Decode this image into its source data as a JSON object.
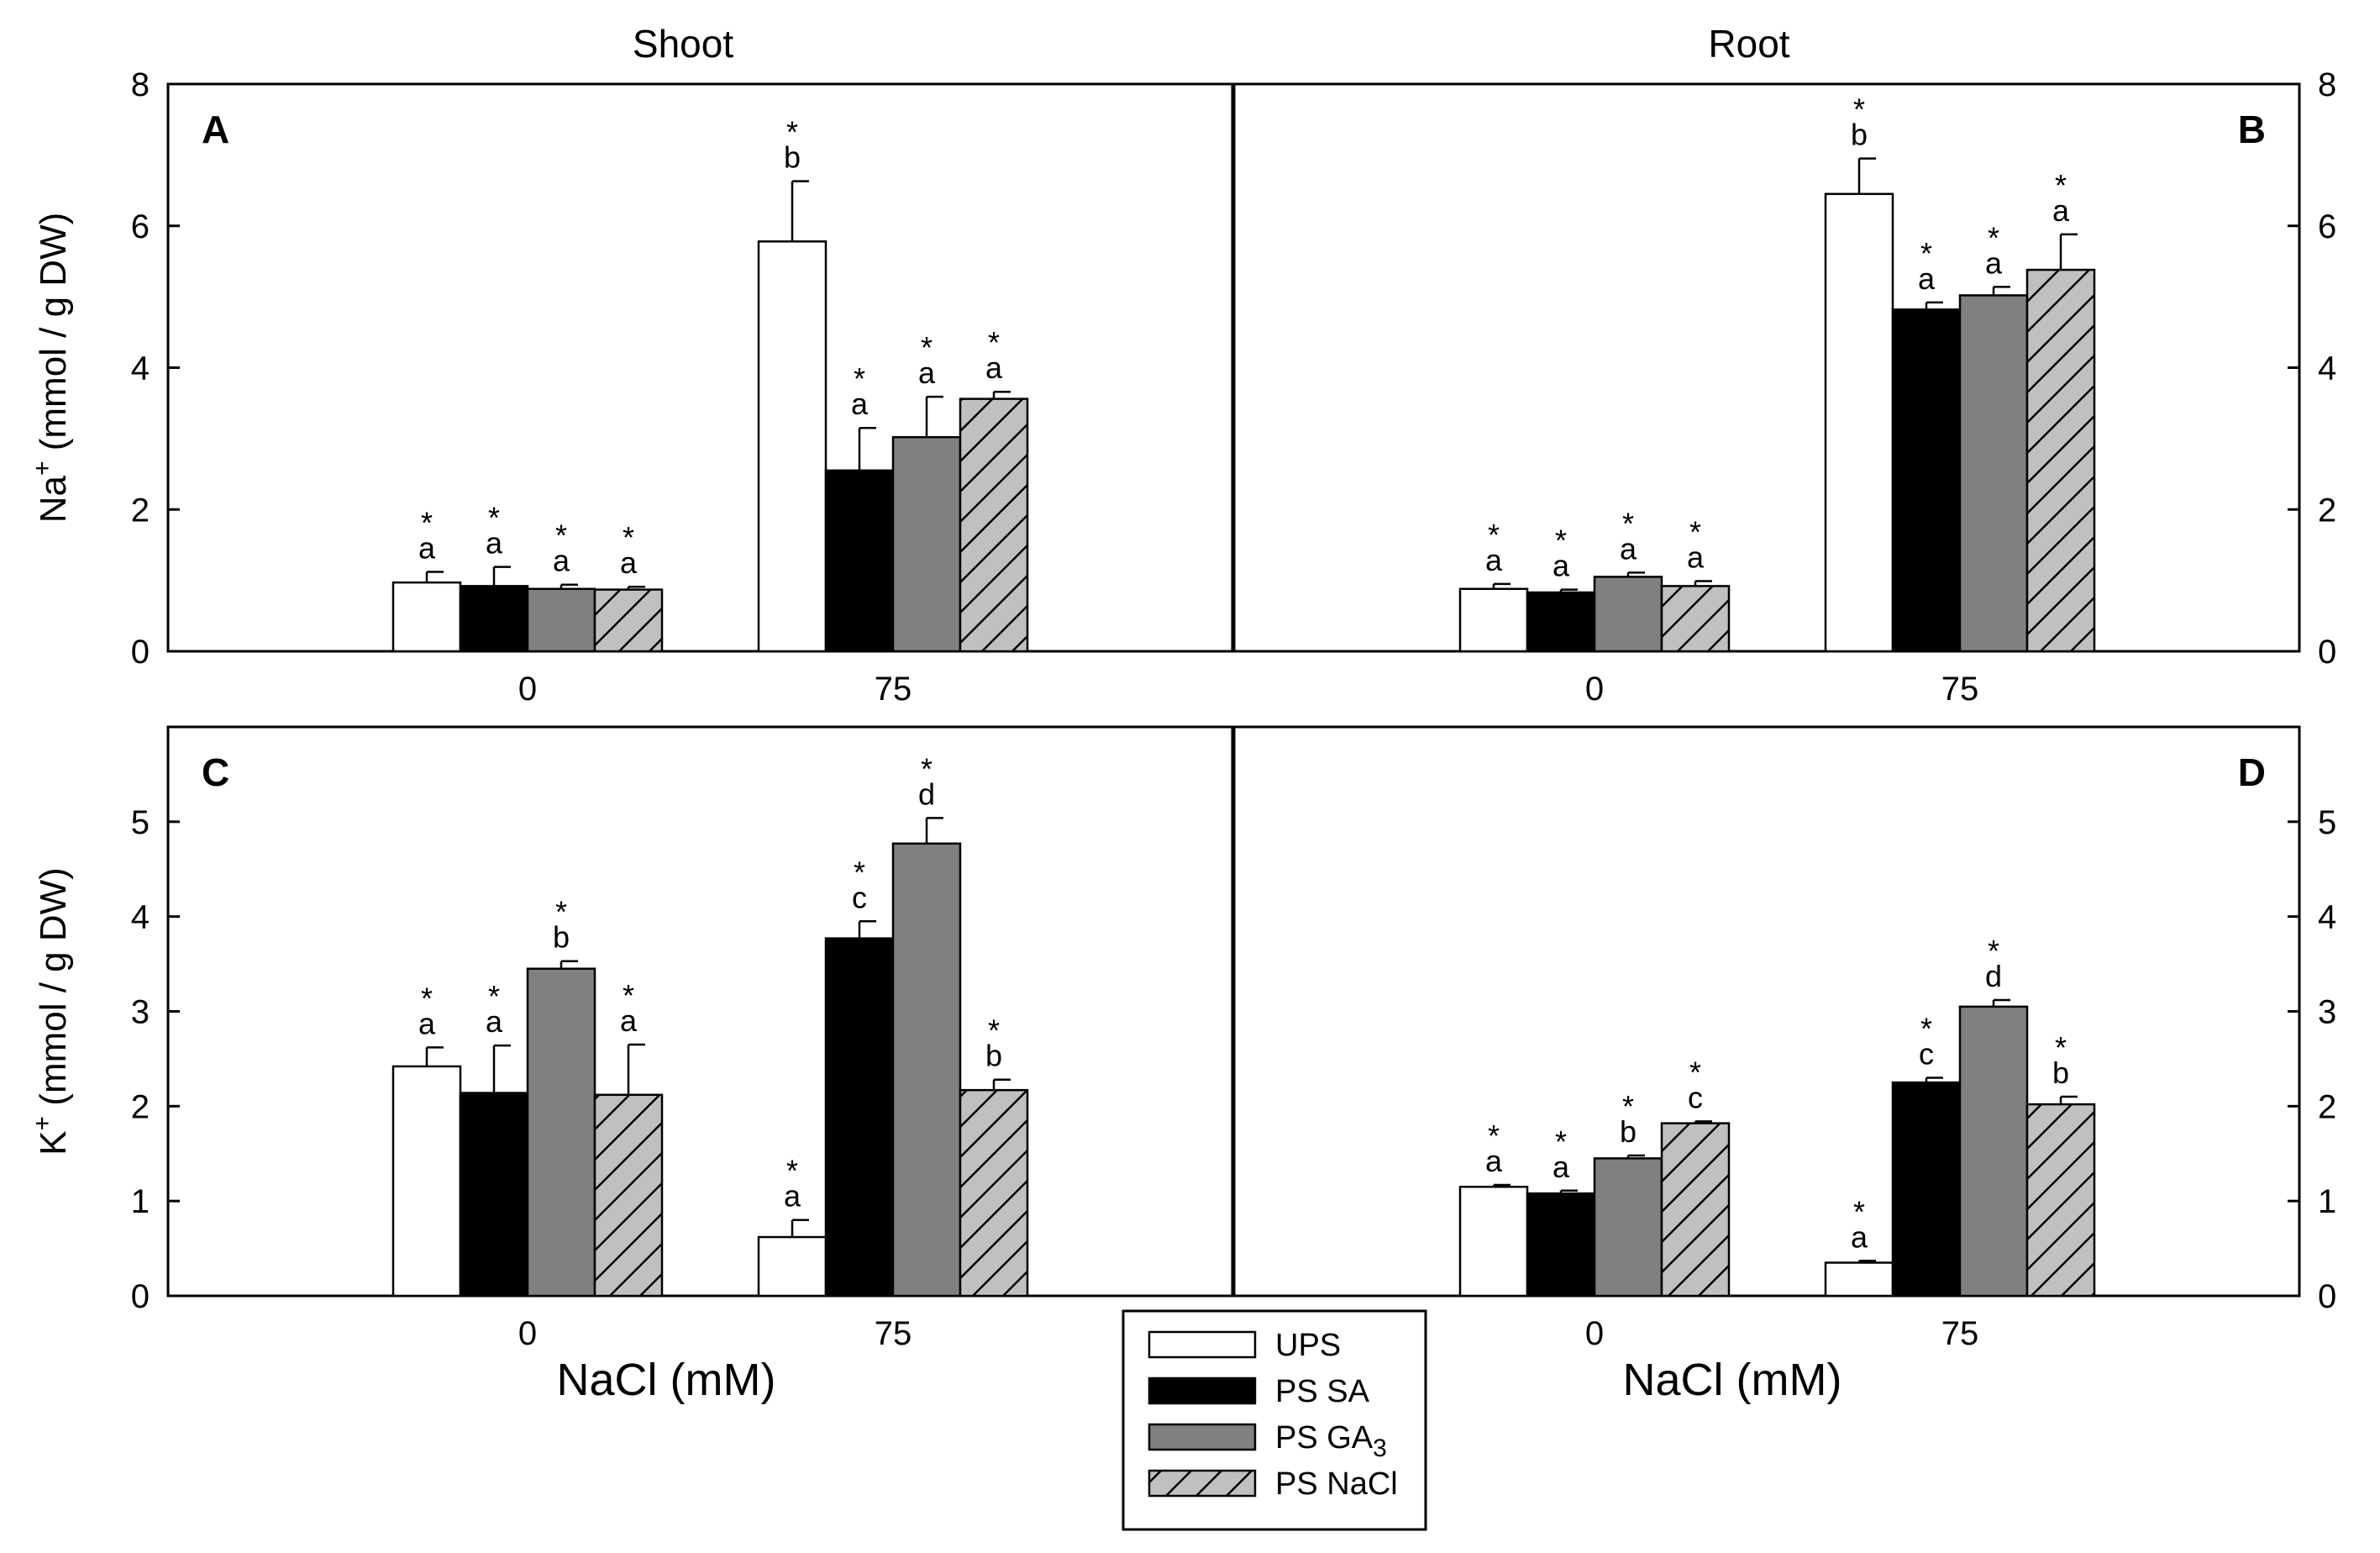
{
  "chart_data": {
    "type": "bar",
    "title": "",
    "columns": [
      "Shoot",
      "Root"
    ],
    "xlabel": "NaCl (mM)",
    "categories": [
      "0",
      "75"
    ],
    "series_names": [
      "UPS",
      "PS SA",
      "PS GA3",
      "PS NaCl"
    ],
    "series_colors": [
      "#ffffff",
      "#000000",
      "#808080",
      "#c0c0c0"
    ],
    "series_hatch": [
      false,
      false,
      false,
      true
    ],
    "legend": {
      "position": "bottom-center",
      "items": [
        {
          "label": "UPS",
          "sub": ""
        },
        {
          "label": "PS SA",
          "sub": ""
        },
        {
          "label": "PS GA",
          "sub": "3"
        },
        {
          "label": "PS NaCl",
          "sub": ""
        }
      ]
    },
    "panels": [
      {
        "id": "A",
        "letter": "A",
        "column_title": "Shoot",
        "row": 0,
        "col": 0,
        "ylabel": "Na",
        "ylabel_sup": "+",
        "ylabel_rest": " (mmol / g DW)",
        "ylim": [
          0,
          8
        ],
        "yticks": [
          0,
          2,
          4,
          6,
          8
        ],
        "series": [
          {
            "name": "UPS",
            "values": [
              0.97,
              5.78
            ],
            "errors": [
              0.15,
              0.85
            ],
            "letters": [
              "a",
              "b"
            ],
            "star": [
              true,
              true
            ]
          },
          {
            "name": "PS SA",
            "values": [
              0.92,
              2.55
            ],
            "errors": [
              0.27,
              0.6
            ],
            "letters": [
              "a",
              "a"
            ],
            "star": [
              true,
              true
            ]
          },
          {
            "name": "PS GA3",
            "values": [
              0.88,
              3.02
            ],
            "errors": [
              0.06,
              0.57
            ],
            "letters": [
              "a",
              "a"
            ],
            "star": [
              true,
              true
            ]
          },
          {
            "name": "PS NaCl",
            "values": [
              0.87,
              3.56
            ],
            "errors": [
              0.04,
              0.1
            ],
            "letters": [
              "a",
              "a"
            ],
            "star": [
              true,
              true
            ]
          }
        ]
      },
      {
        "id": "B",
        "letter": "B",
        "column_title": "Root",
        "row": 0,
        "col": 1,
        "ylabel": "",
        "ylabel_sup": "",
        "ylabel_rest": "",
        "ylim": [
          0,
          8
        ],
        "yticks": [
          0,
          2,
          4,
          6,
          8
        ],
        "series": [
          {
            "name": "UPS",
            "values": [
              0.88,
              6.45
            ],
            "errors": [
              0.07,
              0.5
            ],
            "letters": [
              "a",
              "b"
            ],
            "star": [
              true,
              true
            ]
          },
          {
            "name": "PS SA",
            "values": [
              0.83,
              4.82
            ],
            "errors": [
              0.04,
              0.1
            ],
            "letters": [
              "a",
              "a"
            ],
            "star": [
              true,
              true
            ]
          },
          {
            "name": "PS GA3",
            "values": [
              1.05,
              5.02
            ],
            "errors": [
              0.06,
              0.12
            ],
            "letters": [
              "a",
              "a"
            ],
            "star": [
              true,
              true
            ]
          },
          {
            "name": "PS NaCl",
            "values": [
              0.92,
              5.38
            ],
            "errors": [
              0.07,
              0.5
            ],
            "letters": [
              "a",
              "a"
            ],
            "star": [
              true,
              true
            ]
          }
        ]
      },
      {
        "id": "C",
        "letter": "C",
        "column_title": "",
        "row": 1,
        "col": 0,
        "ylabel": "K",
        "ylabel_sup": "+",
        "ylabel_rest": " (mmol / g DW)",
        "ylim": [
          0,
          6
        ],
        "yticks": [
          0,
          1,
          2,
          3,
          4,
          5
        ],
        "series": [
          {
            "name": "UPS",
            "values": [
              2.42,
              0.62
            ],
            "errors": [
              0.2,
              0.18
            ],
            "letters": [
              "a",
              "a"
            ],
            "star": [
              true,
              true
            ]
          },
          {
            "name": "PS SA",
            "values": [
              2.14,
              3.77
            ],
            "errors": [
              0.5,
              0.18
            ],
            "letters": [
              "a",
              "c"
            ],
            "star": [
              true,
              true
            ]
          },
          {
            "name": "PS GA3",
            "values": [
              3.45,
              4.77
            ],
            "errors": [
              0.08,
              0.27
            ],
            "letters": [
              "b",
              "d"
            ],
            "star": [
              true,
              true
            ]
          },
          {
            "name": "PS NaCl",
            "values": [
              2.12,
              2.17
            ],
            "errors": [
              0.53,
              0.11
            ],
            "letters": [
              "a",
              "b"
            ],
            "star": [
              true,
              true
            ]
          }
        ]
      },
      {
        "id": "D",
        "letter": "D",
        "column_title": "",
        "row": 1,
        "col": 1,
        "ylabel": "",
        "ylabel_sup": "",
        "ylabel_rest": "",
        "ylim": [
          0,
          6
        ],
        "yticks": [
          0,
          1,
          2,
          3,
          4,
          5
        ],
        "series": [
          {
            "name": "UPS",
            "values": [
              1.15,
              0.35
            ],
            "errors": [
              0.02,
              0.02
            ],
            "letters": [
              "a",
              "a"
            ],
            "star": [
              true,
              true
            ]
          },
          {
            "name": "PS SA",
            "values": [
              1.08,
              2.25
            ],
            "errors": [
              0.03,
              0.05
            ],
            "letters": [
              "a",
              "c"
            ],
            "star": [
              true,
              true
            ]
          },
          {
            "name": "PS GA3",
            "values": [
              1.45,
              3.05
            ],
            "errors": [
              0.03,
              0.07
            ],
            "letters": [
              "b",
              "d"
            ],
            "star": [
              true,
              true
            ]
          },
          {
            "name": "PS NaCl",
            "values": [
              1.82,
              2.02
            ],
            "errors": [
              0.02,
              0.08
            ],
            "letters": [
              "c",
              "b"
            ],
            "star": [
              true,
              true
            ]
          }
        ]
      }
    ]
  }
}
